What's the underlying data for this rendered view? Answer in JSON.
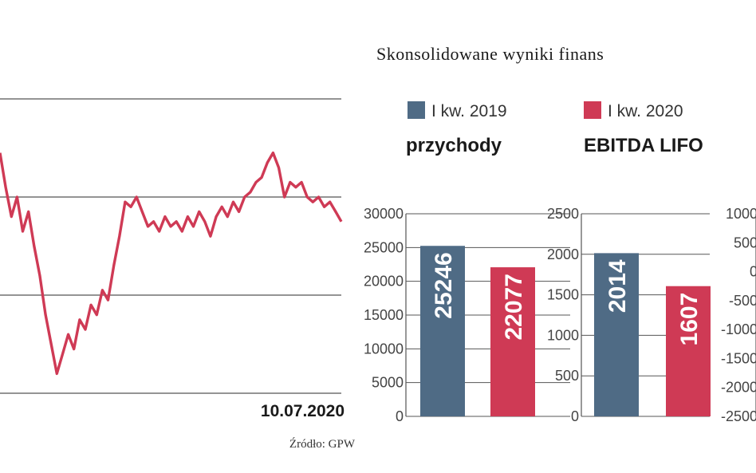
{
  "title": "Skonsolidowane wyniki finans",
  "legend": [
    {
      "label": "I kw. 2019",
      "color": "#4f6b85"
    },
    {
      "label": "I kw. 2020",
      "color": "#cf3a55"
    }
  ],
  "line_date_label": "10.07.2020",
  "source": "Źródło: GPW",
  "colors": {
    "line": "#cf3a55",
    "bar2019": "#4f6b85",
    "bar2020": "#cf3a55",
    "grid": "#555555"
  },
  "chart_data": [
    {
      "type": "line",
      "x_end_label": "10.07.2020",
      "values": [
        9.5,
        8.8,
        8.2,
        8.6,
        7.9,
        8.3,
        7.6,
        7.0,
        6.2,
        5.6,
        5.0,
        5.4,
        5.8,
        5.5,
        6.1,
        5.9,
        6.4,
        6.2,
        6.7,
        6.5,
        7.2,
        7.8,
        8.5,
        8.4,
        8.6,
        8.3,
        8.0,
        8.1,
        7.9,
        8.2,
        8.0,
        8.1,
        7.9,
        8.2,
        8.0,
        8.3,
        8.1,
        7.8,
        8.2,
        8.4,
        8.2,
        8.5,
        8.3,
        8.6,
        8.7,
        8.9,
        9.0,
        9.3,
        9.5,
        9.2,
        8.6,
        8.9,
        8.8,
        8.9,
        8.6,
        8.5,
        8.6,
        8.4,
        8.5,
        8.3,
        8.1
      ],
      "ylim": [
        4.6,
        10.6
      ]
    },
    {
      "type": "bar",
      "title": "przychody",
      "categories": [
        "I kw. 2019",
        "I kw. 2020"
      ],
      "values": [
        25246,
        22077
      ],
      "ylim": [
        0,
        30000
      ],
      "ticks": [
        "0",
        "5000",
        "10000",
        "15000",
        "20000",
        "25000",
        "30000"
      ],
      "value_labels": [
        "25246",
        "22077"
      ]
    },
    {
      "type": "bar",
      "title": "EBITDA LIFO",
      "categories": [
        "I kw. 2019",
        "I kw. 2020"
      ],
      "values": [
        2014,
        1607
      ],
      "ylim": [
        0,
        2500
      ],
      "ticks": [
        "0",
        "500",
        "1000",
        "1500",
        "2000",
        "2500"
      ],
      "value_labels": [
        "2014",
        "1607"
      ]
    },
    {
      "type": "bar",
      "title": "",
      "categories": [],
      "values": [],
      "ylim": [
        -2500,
        1000
      ],
      "ticks": [
        "-2500",
        "-2000",
        "-1500",
        "-1000",
        "-500",
        "0",
        "500",
        "1000"
      ]
    }
  ]
}
